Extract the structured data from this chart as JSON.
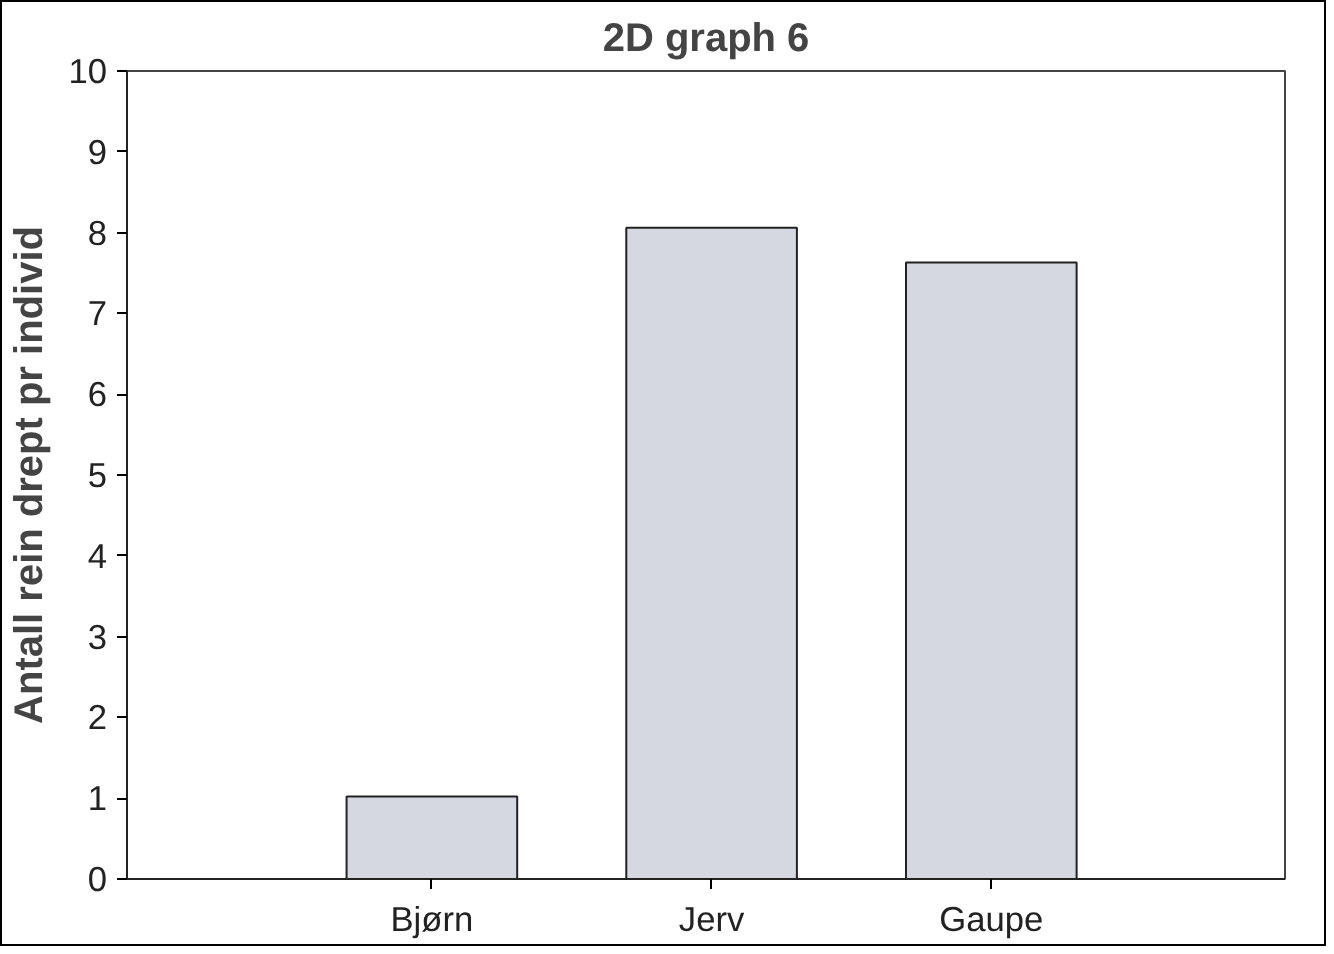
{
  "chart_data": {
    "type": "bar",
    "title": "2D graph 6",
    "ylabel": "Antall rein drept pr individ",
    "categories": [
      "Bjørn",
      "Jerv",
      "Gaupe"
    ],
    "values": [
      1.02,
      8.06,
      7.63
    ],
    "color": "#d5d8e0",
    "ylim": [
      0,
      10
    ],
    "yticks": [
      0,
      1,
      2,
      3,
      4,
      5,
      6,
      7,
      8,
      9,
      10
    ],
    "grid": false
  }
}
